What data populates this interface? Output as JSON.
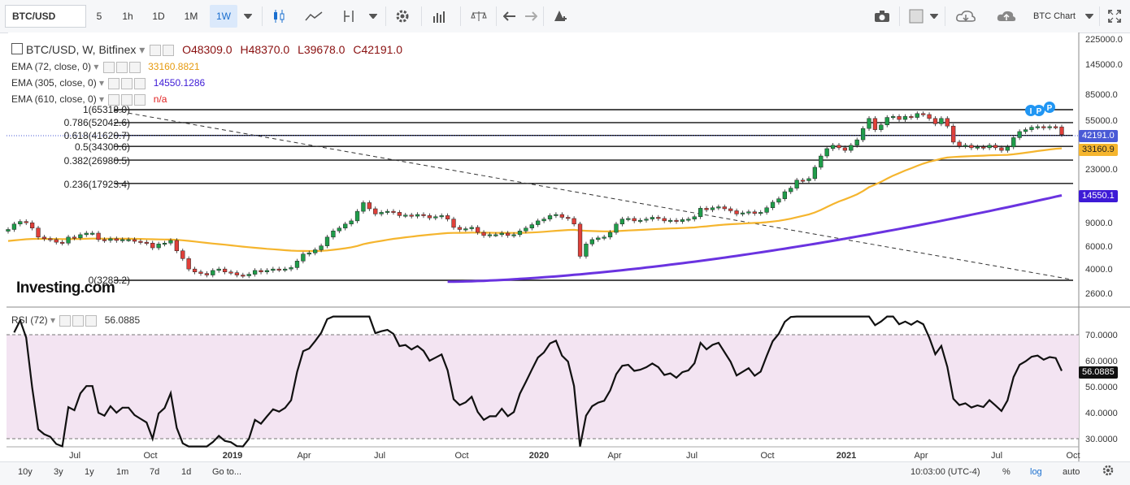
{
  "toolbar": {
    "symbol": "BTC/USD",
    "intervals": [
      "5",
      "1h",
      "1D",
      "1M",
      "1W"
    ],
    "active_interval": "1W",
    "chart_name": "BTC Chart",
    "icons": [
      "candles-icon",
      "line-chart-icon",
      "indicator-icon",
      "dropdown-icon",
      "settings-icon",
      "bars-icon",
      "scale-icon",
      "undo-icon",
      "redo-icon",
      "alert-icon",
      "camera-icon",
      "color-box-icon",
      "cloud-download-icon",
      "cloud-upload-icon",
      "fullscreen-icon"
    ]
  },
  "legend": {
    "title": "BTC/USD, W, Bitfinex",
    "ohlc": {
      "o": "O48309.0",
      "h": "H48370.0",
      "l": "L39678.0",
      "c": "C42191.0"
    },
    "ema72": {
      "label": "EMA (72, close, 0)",
      "value": "33160.8821",
      "color": "#e69a0f"
    },
    "ema305": {
      "label": "EMA (305, close, 0)",
      "value": "14550.1286",
      "color": "#3d1ad6"
    },
    "ema610": {
      "label": "EMA (610, close, 0)",
      "value": "n/a",
      "color": "#e02020"
    },
    "rsi": {
      "label": "RSI (72)",
      "value": "56.0885"
    }
  },
  "fib_labels": [
    "1(65318.0)",
    "0.786(52042.6)",
    "0.618(41620.7)",
    "0.5(34300.6)",
    "0.382(26980.5)",
    "0.236(17923.4)",
    "0(3283.2)"
  ],
  "price_axis": [
    "225000.0",
    "145000.0",
    "85000.0",
    "55000.0",
    "42191.0",
    "33160.9",
    "23000.0",
    "14550.1",
    "9000.0",
    "6000.0",
    "4000.0",
    "2600.0"
  ],
  "price_badges": {
    "close": "42191.0",
    "ema72": "33160.9",
    "ema305": "14550.1"
  },
  "rsi_axis": [
    "70.0000",
    "60.0000",
    "50.0000",
    "40.0000",
    "30.0000"
  ],
  "rsi_badge": "56.0885",
  "time_axis": [
    "Jul",
    "Oct",
    "2019",
    "Apr",
    "Jul",
    "Oct",
    "2020",
    "Apr",
    "Jul",
    "Oct",
    "2021",
    "Apr",
    "Jul",
    "Oct"
  ],
  "markers": [
    "I",
    "P",
    "P"
  ],
  "watermark": "Investing.com",
  "bottombar": {
    "ranges": [
      "10y",
      "3y",
      "1y",
      "1m",
      "7d",
      "1d"
    ],
    "goto": "Go to...",
    "time": "10:03:00 (UTC-4)",
    "percent": "%",
    "log": "log",
    "auto": "auto"
  },
  "colors": {
    "up": "#1f9d4a",
    "down": "#e0403a",
    "ema72": "#f5b52e",
    "ema305": "#6a33e0",
    "rsi_bg": "#f3e4f2",
    "close_badge": "#4a5ad6"
  },
  "chart_data": {
    "type": "candlestick",
    "instrument": "BTC/USD",
    "interval": "W",
    "scale": "log",
    "ylim": [
      2600,
      225000
    ],
    "fib_levels": [
      {
        "ratio": 1,
        "price": 65318.0
      },
      {
        "ratio": 0.786,
        "price": 52042.6
      },
      {
        "ratio": 0.618,
        "price": 41620.7
      },
      {
        "ratio": 0.5,
        "price": 34300.6
      },
      {
        "ratio": 0.382,
        "price": 26980.5
      },
      {
        "ratio": 0.236,
        "price": 17923.4
      },
      {
        "ratio": 0,
        "price": 3283.2
      }
    ],
    "weekly_close": [
      8000,
      8800,
      9200,
      9000,
      8200,
      7000,
      6800,
      6700,
      6400,
      6300,
      7000,
      6900,
      7300,
      7500,
      7500,
      6700,
      6600,
      6800,
      6600,
      6700,
      6700,
      6500,
      6400,
      6300,
      5800,
      6200,
      6300,
      6600,
      5500,
      4800,
      4000,
      3800,
      3700,
      3600,
      3900,
      4000,
      3800,
      3750,
      3600,
      3550,
      3650,
      3900,
      3800,
      3900,
      4000,
      3950,
      4000,
      4100,
      4600,
      5200,
      5300,
      5600,
      6000,
      7000,
      7800,
      8200,
      8800,
      9300,
      11000,
      12800,
      11500,
      10500,
      10800,
      11000,
      10800,
      10200,
      10300,
      10100,
      10400,
      10200,
      9800,
      10000,
      10200,
      9600,
      8300,
      8000,
      8100,
      8300,
      7600,
      7200,
      7300,
      7300,
      7500,
      7200,
      7300,
      7800,
      8200,
      8700,
      9300,
      9600,
      10200,
      10400,
      9900,
      9700,
      8800,
      5000,
      6200,
      6700,
      6900,
      7000,
      7600,
      8800,
      9600,
      9700,
      9300,
      9400,
      9600,
      9900,
      9700,
      9300,
      9400,
      9200,
      9500,
      9600,
      10000,
      11600,
      11300,
      11700,
      11900,
      11500,
      11100,
      10500,
      10700,
      10900,
      10600,
      10800,
      11700,
      12900,
      13700,
      15500,
      16500,
      19000,
      18800,
      19500,
      23800,
      29000,
      33000,
      35000,
      33500,
      32000,
      35000,
      38500,
      47000,
      56000,
      46000,
      50000,
      57000,
      58000,
      55000,
      58000,
      57000,
      61000,
      60000,
      56000,
      51000,
      56000,
      49000,
      37000,
      34500,
      35000,
      33500,
      34000,
      33500,
      35000,
      33500,
      32000,
      34000,
      40000,
      44500,
      46000,
      48000,
      48500,
      47500,
      48500,
      48300,
      42191
    ],
    "ema72_range": [
      6500,
      33160.9
    ],
    "ema305_range": [
      3200,
      14550.1
    ],
    "rsi": {
      "period": 72,
      "last": 56.0885,
      "levels": [
        70,
        30
      ],
      "ylim": [
        27,
        77
      ],
      "peaks": [
        {
          "x": "2021-01",
          "y": 75
        },
        {
          "x": "2021-02",
          "y": 75
        }
      ],
      "trough": {
        "x": "2020-03",
        "y": 48
      }
    }
  }
}
